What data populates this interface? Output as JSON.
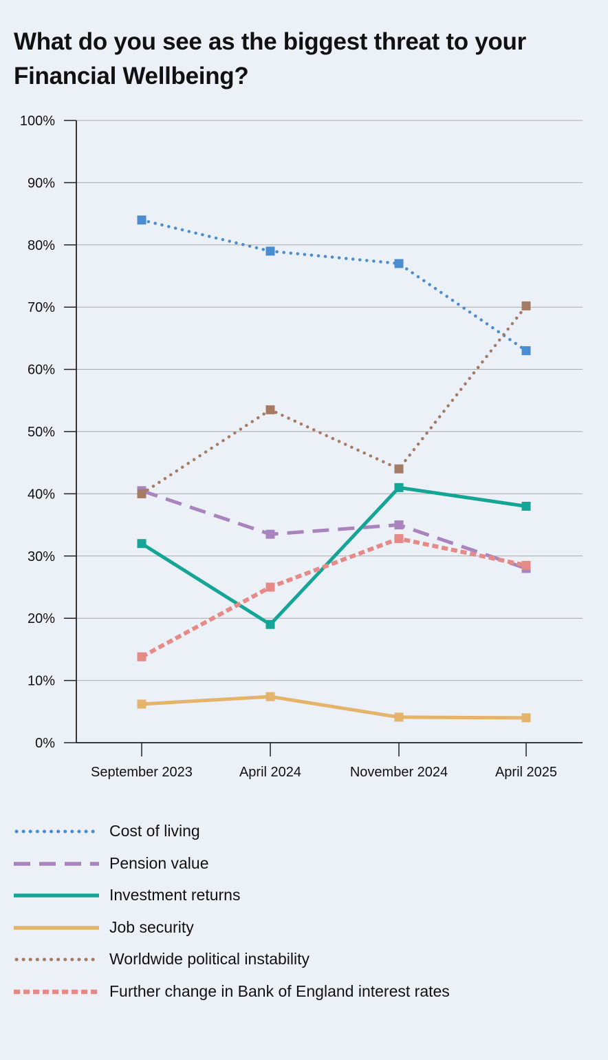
{
  "title_lines": [
    "What do you see as the biggest threat to your",
    "Financial Wellbeing?"
  ],
  "chart_data": {
    "type": "line",
    "title": "What do you see as the biggest threat to your Financial Wellbeing?",
    "categories": [
      "September 2023",
      "April 2024",
      "November 2024",
      "April 2025"
    ],
    "y_tick_labels": [
      "0%",
      "10%",
      "20%",
      "30%",
      "40%",
      "50%",
      "60%",
      "70%",
      "80%",
      "90%",
      "100%"
    ],
    "ylim": [
      0,
      100
    ],
    "grid": true,
    "legend_position": "bottom",
    "series": [
      {
        "name": "Cost of living",
        "values": [
          84,
          79,
          77,
          63
        ],
        "color": "#4a8ed0",
        "style": "dotted"
      },
      {
        "name": "Pension value",
        "values": [
          40.5,
          33.5,
          35,
          28
        ],
        "color": "#a883bd",
        "style": "dashed"
      },
      {
        "name": "Investment returns",
        "values": [
          32,
          19,
          41,
          38
        ],
        "color": "#15a596",
        "style": "solid"
      },
      {
        "name": "Job security",
        "values": [
          6.2,
          7.4,
          4.1,
          4
        ],
        "color": "#e4b46a",
        "style": "solid"
      },
      {
        "name": "Worldwide political instability",
        "values": [
          40,
          53.5,
          44,
          70.2
        ],
        "color": "#a67b66",
        "style": "dotted"
      },
      {
        "name": "Further change in Bank of England interest rates",
        "values": [
          13.8,
          25,
          32.8,
          28.5
        ],
        "color": "#e58a87",
        "style": "short-dashed"
      }
    ]
  }
}
